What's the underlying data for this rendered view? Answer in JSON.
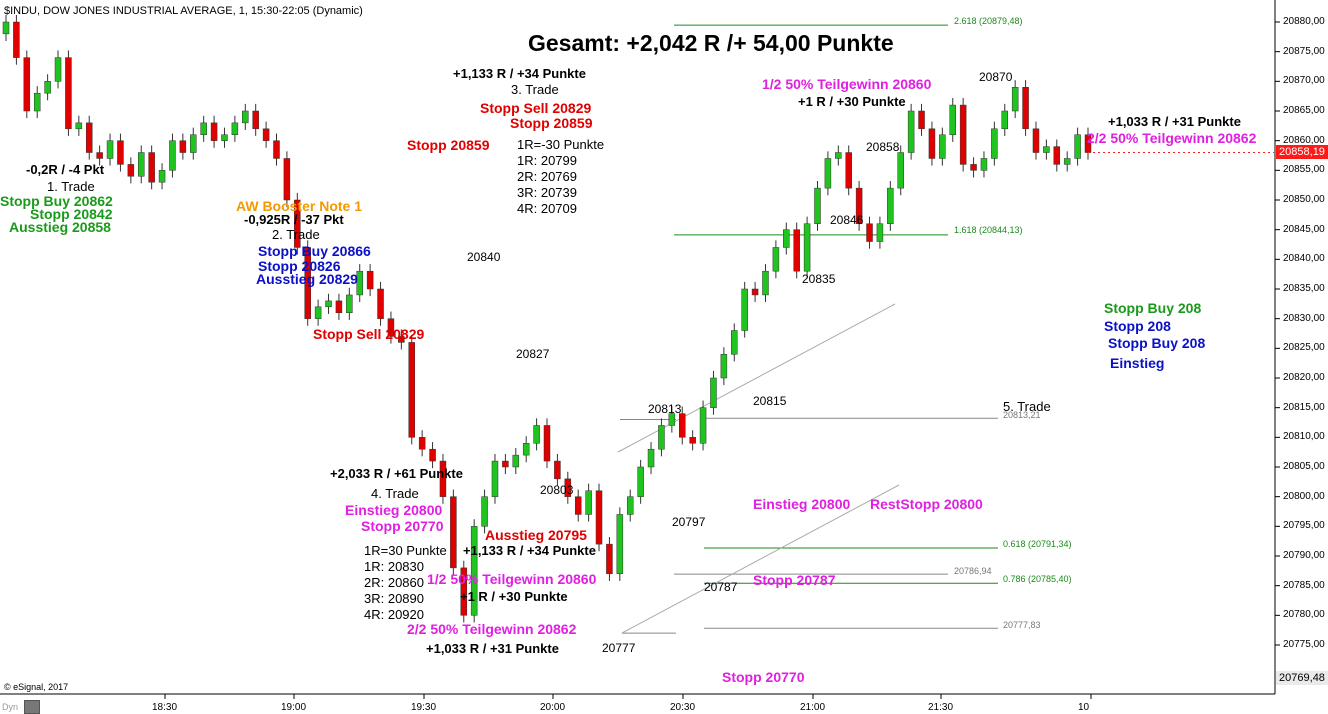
{
  "header": {
    "symbol_line": "$INDU, DOW JONES INDUSTRIAL AVERAGE, 1, 15:30-22:05 (Dynamic)",
    "title": "Gesamt: +2,042 R /+ 54,00 Punkte",
    "copyright": "© eSignal, 2017",
    "dyn_label": "Dyn"
  },
  "price_axis": {
    "ticks": [
      "20880,00",
      "20875,00",
      "20870,00",
      "20865,00",
      "20860,00",
      "20855,00",
      "20850,00",
      "20845,00",
      "20840,00",
      "20835,00",
      "20830,00",
      "20825,00",
      "20820,00",
      "20815,00",
      "20810,00",
      "20805,00",
      "20800,00",
      "20795,00",
      "20790,00",
      "20785,00",
      "20780,00",
      "20775,00"
    ],
    "current_price": "20858,19",
    "last_label": "20769,48"
  },
  "time_axis": {
    "ticks": [
      "18:30",
      "19:00",
      "19:30",
      "20:00",
      "20:30",
      "21:00",
      "21:30",
      "10"
    ]
  },
  "colors": {
    "up_candle": "#1fc41f",
    "down_candle": "#e00000",
    "fib_line": "#1a8a1a",
    "channel_line": "#aaaaaa",
    "current_price_bg": "#ff1a1a"
  },
  "fib_levels": [
    {
      "label": "2.618 (20879,48)",
      "price": 20879.48
    },
    {
      "label": "1.618 (20844,13)",
      "price": 20844.13
    },
    {
      "label": "0.618 (20791,34)",
      "price": 20791.34
    },
    {
      "label": "0.786 (20785,40)",
      "price": 20785.4
    }
  ],
  "gray_levels": [
    {
      "label": "20813,21",
      "price": 20813.21
    },
    {
      "label": "20786,94",
      "price": 20786.94
    },
    {
      "label": "20777,83",
      "price": 20777.83
    }
  ],
  "trade1": {
    "result": "-0,2R / -4 Pkt",
    "name": "1. Trade",
    "entry": "Stopp Buy 20862",
    "stop": "Stopp 20842",
    "exit": "Ausstieg 20858"
  },
  "trade2": {
    "note": "AW Booster Note 1",
    "result": "-0,925R / -37 Pkt",
    "name": "2. Trade",
    "entry": "Stopp Buy 20866",
    "stop": "Stopp 20826",
    "exit": "Ausstieg 20829"
  },
  "trade3": {
    "result": "+1,133 R / +34 Punkte",
    "name": "3. Trade",
    "entry": "Stopp Sell 20829",
    "stop": "Stopp 20859",
    "r_lines": [
      "1R=-30 Punkte",
      "1R: 20799",
      "2R: 20769",
      "3R: 20739",
      "4R: 20709"
    ],
    "stop_mark": "Stopp 20859",
    "sell_mark": "Stopp Sell 20829"
  },
  "trade4": {
    "total": "+2,033 R / +61 Punkte",
    "name": "4. Trade",
    "entry": "Einstieg 20800",
    "stop": "Stopp 20770",
    "r_lines": [
      "1R=30 Punkte",
      "1R: 20830",
      "2R: 20860",
      "3R: 20890",
      "4R: 20920"
    ],
    "exit_label": "Ausstieg 20795",
    "exit_result": "+1,133 R / +34 Punkte",
    "half1": "1/2 50% Teilgewinn 20860",
    "half1_result": "+1 R / +30 Punkte",
    "half2": "2/2 50% Teilgewinn 20862",
    "half2_result": "+1,033 R / +31 Punkte",
    "stop_bottom": "Stopp 20770"
  },
  "trade5": {
    "name": "5. Trade",
    "entry": "Einstieg 20800",
    "rest_stop": "RestStopp 20800",
    "stop": "Stopp 20787",
    "half1": "1/2 50% Teilgewinn 20860",
    "half1_result": "+1 R / +30 Punkte",
    "half2": "2/2 50% Teilgewinn 20862",
    "half2_result": "+1,033 R / +31 Punkte"
  },
  "right_notes": {
    "line1": "Stopp Buy 208",
    "line2": "Stopp 208",
    "line3": "Stopp Buy 208",
    "line4": "Einstieg"
  },
  "point_labels": [
    "20840",
    "20827",
    "20803",
    "20813",
    "20797",
    "20787",
    "20777",
    "20815",
    "20835",
    "20846",
    "20858",
    "20870"
  ],
  "chart_data": {
    "type": "candlestick",
    "title": "Gesamt: +2,042 R /+ 54,00 Punkte",
    "symbol": "$INDU, DOW JONES INDUSTRIAL AVERAGE, 1, 15:30-22:05 (Dynamic)",
    "ylim": [
      20769.48,
      20882
    ],
    "time_ticks": [
      "18:30",
      "19:00",
      "19:30",
      "20:00",
      "20:30",
      "21:00",
      "21:30",
      "10"
    ],
    "key_points": [
      {
        "label": "20840",
        "value": 20840
      },
      {
        "label": "20827",
        "value": 20827
      },
      {
        "label": "20803",
        "value": 20803
      },
      {
        "label": "20813",
        "value": 20813
      },
      {
        "label": "20797",
        "value": 20797
      },
      {
        "label": "20787",
        "value": 20787
      },
      {
        "label": "20777",
        "value": 20777
      },
      {
        "label": "20815",
        "value": 20815
      },
      {
        "label": "20835",
        "value": 20835
      },
      {
        "label": "20846",
        "value": 20846
      },
      {
        "label": "20858",
        "value": 20858
      },
      {
        "label": "20870",
        "value": 20870
      }
    ],
    "path": [
      20880,
      20874,
      20865,
      20868,
      20870,
      20874,
      20862,
      20863,
      20858,
      20857,
      20860,
      20856,
      20854,
      20858,
      20853,
      20855,
      20860,
      20858,
      20861,
      20863,
      20860,
      20861,
      20863,
      20865,
      20862,
      20860,
      20857,
      20850,
      20842,
      20830,
      20832,
      20833,
      20831,
      20834,
      20838,
      20835,
      20830,
      20827,
      20826,
      20810,
      20808,
      20806,
      20800,
      20788,
      20780,
      20795,
      20800,
      20806,
      20805,
      20807,
      20809,
      20812,
      20806,
      20803,
      20800,
      20797,
      20801,
      20792,
      20787,
      20797,
      20800,
      20805,
      20808,
      20812,
      20814,
      20810,
      20809,
      20815,
      20820,
      20824,
      20828,
      20835,
      20834,
      20838,
      20842,
      20845,
      20838,
      20846,
      20852,
      20857,
      20858,
      20852,
      20846,
      20843,
      20846,
      20852,
      20858,
      20865,
      20862,
      20857,
      20861,
      20866,
      20856,
      20855,
      20857,
      20862,
      20865,
      20869,
      20862,
      20858,
      20859,
      20856,
      20857,
      20861,
      20858
    ]
  }
}
